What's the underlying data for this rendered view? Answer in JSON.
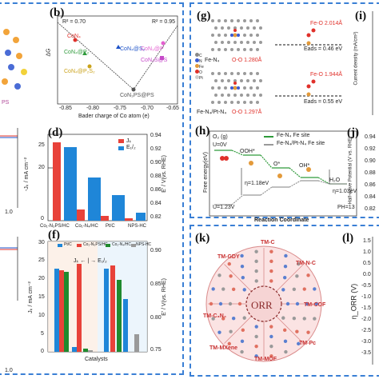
{
  "panels": {
    "b": {
      "tag": "(b)",
      "r2_left": "R² = 0.70",
      "r2_right": "R² = 0.95",
      "ylabel": "ΔG",
      "xlabel": "Bader charge of Co atom (e)",
      "xticks": [
        "-0.85",
        "-0.80",
        "-0.75",
        "-0.70",
        "-0.65"
      ],
      "points": [
        {
          "label": "CoN₄",
          "color": "#e0302a"
        },
        {
          "label": "CoN₄@P₂",
          "color": "#2e9a3a"
        },
        {
          "label": "CoN₄@S₂",
          "color": "#1d52c8"
        },
        {
          "label": "CoN₃@P",
          "color": "#e45fd0"
        },
        {
          "label": "CoN₄@P₂S₂",
          "color": "#caa21a"
        },
        {
          "label": "CoN₃S@S",
          "color": "#c64ac9"
        },
        {
          "label": "CoN₃PS@PS",
          "color": "#555555"
        }
      ],
      "left_fragment": "PS"
    },
    "d": {
      "tag": "(d)",
      "ylabel": "-Jₖ / mA cm⁻²",
      "ylabel_right": "E' / V(vs. RHE)",
      "legend": [
        "Jₖ",
        "E₁/₂"
      ],
      "categories": [
        "Co₁-N₃PS/HC",
        "Co₁-N₄/HC",
        "Pt/C",
        "NPS-HC"
      ],
      "yticks_right": [
        "0.94",
        "0.92",
        "0.90",
        "0.88",
        "0.86",
        "0.84",
        "0.82"
      ],
      "yticks_left": [
        "0",
        "20",
        "25"
      ],
      "left_edge_tick": "1.0"
    },
    "f": {
      "tag": "(f)",
      "ylabel": "Jₖ / mA cm⁻²",
      "ylabel_right": "E' / V(vs. RHE)",
      "xlabel": "Catalysts",
      "legend": [
        "Pt/C",
        "Co₁-N₃PS/HC",
        "Co₁-N₄/HC",
        "NPS-HC"
      ],
      "annotation": "Jₖ ← | → E₁/₂",
      "yticks_left": [
        "0",
        "5",
        "10",
        "15",
        "20",
        "25",
        "30"
      ],
      "yticks_right": [
        "0.75",
        "0.80",
        "0.85",
        "0.90"
      ],
      "left_edge_tick": "1.0"
    },
    "g": {
      "tag": "(g)",
      "top_label": "Fe-N₄",
      "bottom_label": "Fe-N₄/Pt-N₄",
      "fe_o_top": "Fe-O 2.014Å",
      "o_o_top": "O-O 1.280Å",
      "eads_top": "Eads = 0.46 eV",
      "fe_o_bottom": "Fe-O 1.944Å",
      "o_o_bottom": "O-O 1.297Å",
      "eads_bottom": "Eads = 0.55 eV",
      "legend": [
        "C",
        "N",
        "Fe",
        "O",
        "Pt"
      ]
    },
    "i": {
      "tag": "(i)",
      "ylabel": "Current density (mA/cm²)"
    },
    "h": {
      "tag": "(h)",
      "legend": [
        "Fe-N₄ Fe site",
        "Fe-N₄/Pt-N₄ Fe site"
      ],
      "ylabel": "Free energy(eV)",
      "xlabel": "Reaction Coordinate",
      "species": [
        "O₂ (g)",
        "OOH*",
        "O*",
        "OH*",
        "H₂O"
      ],
      "u_top": "U=0V",
      "u_bottom": "U=1.23V",
      "eta1": "η=1.18eV",
      "eta2": "η=1.03eV",
      "ph": "PH=13"
    },
    "j": {
      "tag": "(j)",
      "ylabel": "Half-wave Potential (V vs. RHE)",
      "yticks": [
        "0.94",
        "0.92",
        "0.90",
        "0.88",
        "0.86",
        "0.84",
        "0.82"
      ]
    },
    "k": {
      "tag": "(k)",
      "center": "ORR",
      "labels": [
        "TM-C",
        "TM-GDY",
        "TM-N-C",
        "TM-COF",
        "TM-C₃N₄",
        "TM-Pc",
        "TM-MOF",
        "TM-MXene"
      ]
    },
    "l": {
      "tag": "(l)",
      "ylabel": "η_ORR (V)",
      "yticks": [
        "1.5",
        "1.0",
        "0.5",
        "0.0",
        "-0.5",
        "-1.0",
        "-1.5",
        "-2.0",
        "-2.5",
        "-3.0",
        "-3.5"
      ]
    }
  },
  "colors": {
    "frame": "#3a7fd5",
    "red_bar": "#e8423a",
    "blue_bar": "#1f86d8",
    "green_bar": "#1f8a2e",
    "grey_bar": "#9a9a9a"
  }
}
